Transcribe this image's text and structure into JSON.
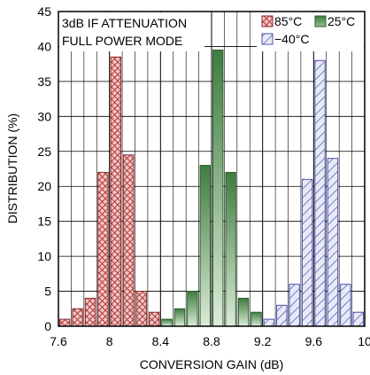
{
  "chart_data": {
    "type": "bar",
    "xlabel": "CONVERSION GAIN (dB)",
    "ylabel": "DISTRIBUTION (%)",
    "xlim": [
      7.6,
      10.0
    ],
    "ylim": [
      0,
      45
    ],
    "xticks": [
      "7.6",
      "8",
      "8.4",
      "8.8",
      "9.2",
      "9.6",
      "10"
    ],
    "yticks": [
      "0",
      "5",
      "10",
      "15",
      "20",
      "25",
      "30",
      "35",
      "40",
      "45"
    ],
    "bin_width": 0.1,
    "grid": true,
    "annotation_lines": [
      "3dB IF ATTENUATION",
      "FULL POWER MODE"
    ],
    "legend_placement": "top-right",
    "series": [
      {
        "name": "85°C",
        "color": "#c0504d",
        "pattern": "crosshatch",
        "x": [
          7.65,
          7.75,
          7.85,
          7.95,
          8.05,
          8.15,
          8.25,
          8.35
        ],
        "values": [
          1.0,
          2.5,
          4.0,
          22.0,
          38.5,
          24.5,
          5.0,
          2.0
        ]
      },
      {
        "name": "25°C",
        "color": "#4e8a4e",
        "pattern": "gradient",
        "x": [
          8.45,
          8.55,
          8.65,
          8.75,
          8.85,
          8.95,
          9.05,
          9.15
        ],
        "values": [
          1.0,
          2.5,
          5.0,
          23.0,
          39.5,
          22.0,
          4.0,
          2.0
        ]
      },
      {
        "name": "−40°C",
        "color": "#6f78c4",
        "pattern": "hatch",
        "x": [
          9.25,
          9.35,
          9.45,
          9.55,
          9.65,
          9.75,
          9.85,
          9.95
        ],
        "values": [
          1.0,
          3.0,
          6.0,
          21.0,
          38.0,
          24.0,
          6.0,
          2.0
        ]
      }
    ]
  }
}
